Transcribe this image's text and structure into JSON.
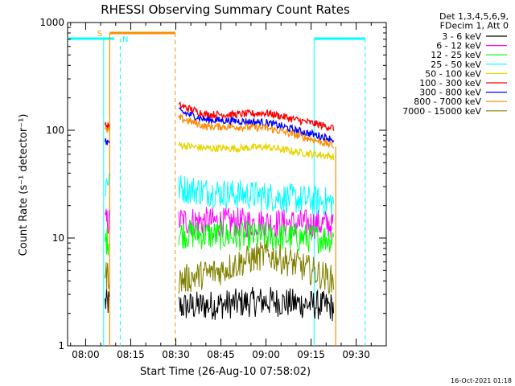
{
  "chart_data": {
    "type": "line",
    "title": "RHESSI Observing Summary Count Rates",
    "xlabel": "Start Time (26-Aug-10 07:58:02)",
    "ylabel": "Count Rate (s⁻¹ detector⁻¹)",
    "yscale": "log",
    "ylim": [
      1,
      1000
    ],
    "xlim_minutes": [
      -6,
      100
    ],
    "x_ticks": [
      {
        "label": "08:00",
        "value": 0
      },
      {
        "label": "08:15",
        "value": 15
      },
      {
        "label": "08:30",
        "value": 30
      },
      {
        "label": "08:45",
        "value": 45
      },
      {
        "label": "09:00",
        "value": 60
      },
      {
        "label": "09:15",
        "value": 75
      },
      {
        "label": "09:30",
        "value": 90
      }
    ],
    "y_ticks": [
      {
        "label": "1",
        "value": 1
      },
      {
        "label": "10",
        "value": 10
      },
      {
        "label": "100",
        "value": 100
      },
      {
        "label": "1000",
        "value": 1000
      }
    ],
    "legend": {
      "position": "right",
      "header": [
        "Det 1,3,4,5,6,9,",
        "FDecim 1, Att 0"
      ],
      "entries": [
        {
          "label": "3 - 6 keV",
          "color": "#000000"
        },
        {
          "label": "6 - 12 keV",
          "color": "#ff00ff"
        },
        {
          "label": "12 - 25 keV",
          "color": "#00ff00"
        },
        {
          "label": "25 - 50 keV",
          "color": "#00ffff"
        },
        {
          "label": "50 - 100 keV",
          "color": "#e8d400"
        },
        {
          "label": "100 - 300 keV",
          "color": "#ff0000"
        },
        {
          "label": "300 - 800 keV",
          "color": "#0000ff"
        },
        {
          "label": "800 - 7000 keV",
          "color": "#ff8c00"
        },
        {
          "label": "7000 - 15000 keV",
          "color": "#808000"
        }
      ]
    },
    "series": [
      {
        "name": "3 - 6 keV",
        "color": "#000000",
        "style": "noise",
        "segments": [
          {
            "x": [
              6.5,
              7.8
            ],
            "y": [
              2.5,
              2.5
            ]
          },
          {
            "x": [
              31,
              44,
              52,
              60,
              68,
              76,
              82.5
            ],
            "y": [
              2.3,
              2.4,
              2.5,
              2.6,
              2.5,
              2.4,
              2.3
            ]
          }
        ]
      },
      {
        "name": "6 - 12 keV",
        "color": "#ff00ff",
        "style": "noise",
        "segments": [
          {
            "x": [
              6.5,
              7.8
            ],
            "y": [
              14,
              14
            ]
          },
          {
            "x": [
              31,
              45,
              60,
              75,
              82.5
            ],
            "y": [
              14.5,
              14,
              13.8,
              13.5,
              13.5
            ]
          }
        ]
      },
      {
        "name": "12 - 25 keV",
        "color": "#00ff00",
        "style": "noise",
        "segments": [
          {
            "x": [
              6.5,
              7.8
            ],
            "y": [
              9.5,
              9.5
            ]
          },
          {
            "x": [
              31,
              45,
              60,
              75,
              82.5
            ],
            "y": [
              11,
              10.5,
              10.3,
              10,
              10
            ]
          }
        ]
      },
      {
        "name": "25 - 50 keV",
        "color": "#00ffff",
        "style": "noise",
        "segments": [
          {
            "x": [
              6.5,
              7.8
            ],
            "y": [
              30,
              38
            ]
          },
          {
            "x": [
              31,
              40,
              50,
              60,
              70,
              82.5
            ],
            "y": [
              29,
              27,
              25.5,
              24.5,
              23,
              21.5
            ]
          }
        ]
      },
      {
        "name": "50 - 100 keV",
        "color": "#e8d400",
        "style": "line",
        "segments": [
          {
            "x": [
              31,
              40,
              50,
              60,
              70,
              82.5
            ],
            "y": [
              73,
              68,
              68,
              70,
              63,
              57
            ]
          }
        ]
      },
      {
        "name": "100 - 300 keV",
        "color": "#ff0000",
        "style": "line",
        "segments": [
          {
            "x": [
              6.5,
              7.8
            ],
            "y": [
              110,
              110
            ]
          },
          {
            "x": [
              31,
              40,
              50,
              60,
              70,
              82.5
            ],
            "y": [
              170,
              140,
              140,
              145,
              125,
              105
            ]
          }
        ]
      },
      {
        "name": "300 - 800 keV",
        "color": "#0000ff",
        "style": "line",
        "segments": [
          {
            "x": [
              6.5,
              7.8
            ],
            "y": [
              78,
              78
            ]
          },
          {
            "x": [
              31,
              40,
              50,
              60,
              70,
              82.5
            ],
            "y": [
              150,
              125,
              122,
              118,
              100,
              82
            ]
          }
        ]
      },
      {
        "name": "800 - 7000 keV",
        "color": "#ff8c00",
        "style": "line",
        "segments": [
          {
            "x": [
              6.5,
              7.8
            ],
            "y": [
              100,
              100
            ]
          },
          {
            "x": [
              31,
              40,
              50,
              60,
              70,
              82.5
            ],
            "y": [
              130,
              108,
              108,
              105,
              90,
              72
            ]
          }
        ]
      },
      {
        "name": "7000 - 15000 keV",
        "color": "#808000",
        "style": "noise",
        "segments": [
          {
            "x": [
              6.5,
              7.8
            ],
            "y": [
              4.5,
              4.5
            ]
          },
          {
            "x": [
              31,
              45,
              52,
              60,
              68,
              75,
              82.5
            ],
            "y": [
              4,
              5,
              6,
              7,
              6,
              5,
              4
            ]
          }
        ]
      }
    ],
    "annotations": {
      "saa_label": "S",
      "night_label": "N"
    },
    "footer_date": "16-Oct-2021 01:18"
  }
}
